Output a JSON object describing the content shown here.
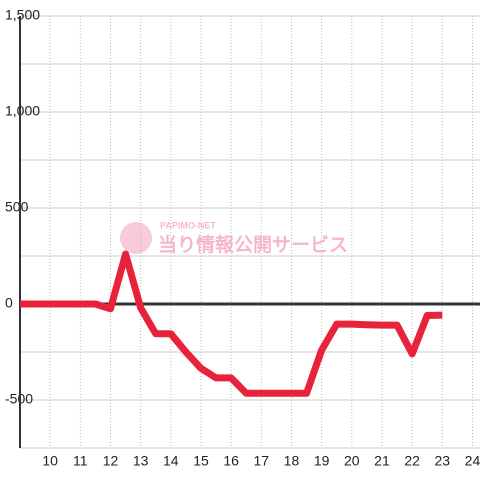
{
  "chart_data": {
    "type": "line",
    "watermark_small": "PAPIMO-NET",
    "watermark": "当り情報公開サービス",
    "x": [
      9,
      9.5,
      10,
      10.5,
      11,
      11.5,
      12,
      12.5,
      13,
      13.5,
      14,
      14.5,
      15,
      15.5,
      16,
      16.5,
      17,
      17.5,
      18,
      18.5,
      19,
      19.5,
      20,
      20.5,
      21,
      21.5,
      22,
      22.5,
      23
    ],
    "series": [
      {
        "color": "#e8223a",
        "values": [
          0,
          0,
          0,
          0,
          0,
          0,
          -25,
          260,
          -20,
          -155,
          -155,
          -250,
          -335,
          -385,
          -385,
          -465,
          -465,
          -465,
          -465,
          -465,
          -240,
          -105,
          -105,
          -108,
          -110,
          -110,
          -260,
          -60,
          -58
        ]
      }
    ],
    "xlim": [
      9,
      24.25
    ],
    "xticks": [
      10,
      11,
      12,
      13,
      14,
      15,
      16,
      17,
      18,
      19,
      20,
      21,
      22,
      23,
      24
    ],
    "ylim": [
      -750,
      1500
    ],
    "yticks": [
      -500,
      0,
      500,
      {
        "value": 1000,
        "label": "1,000"
      },
      {
        "value": 1500,
        "label": "1,500"
      }
    ],
    "y_minor_ticks": [
      -750,
      -250,
      250,
      750,
      1250
    ],
    "grid": true
  }
}
